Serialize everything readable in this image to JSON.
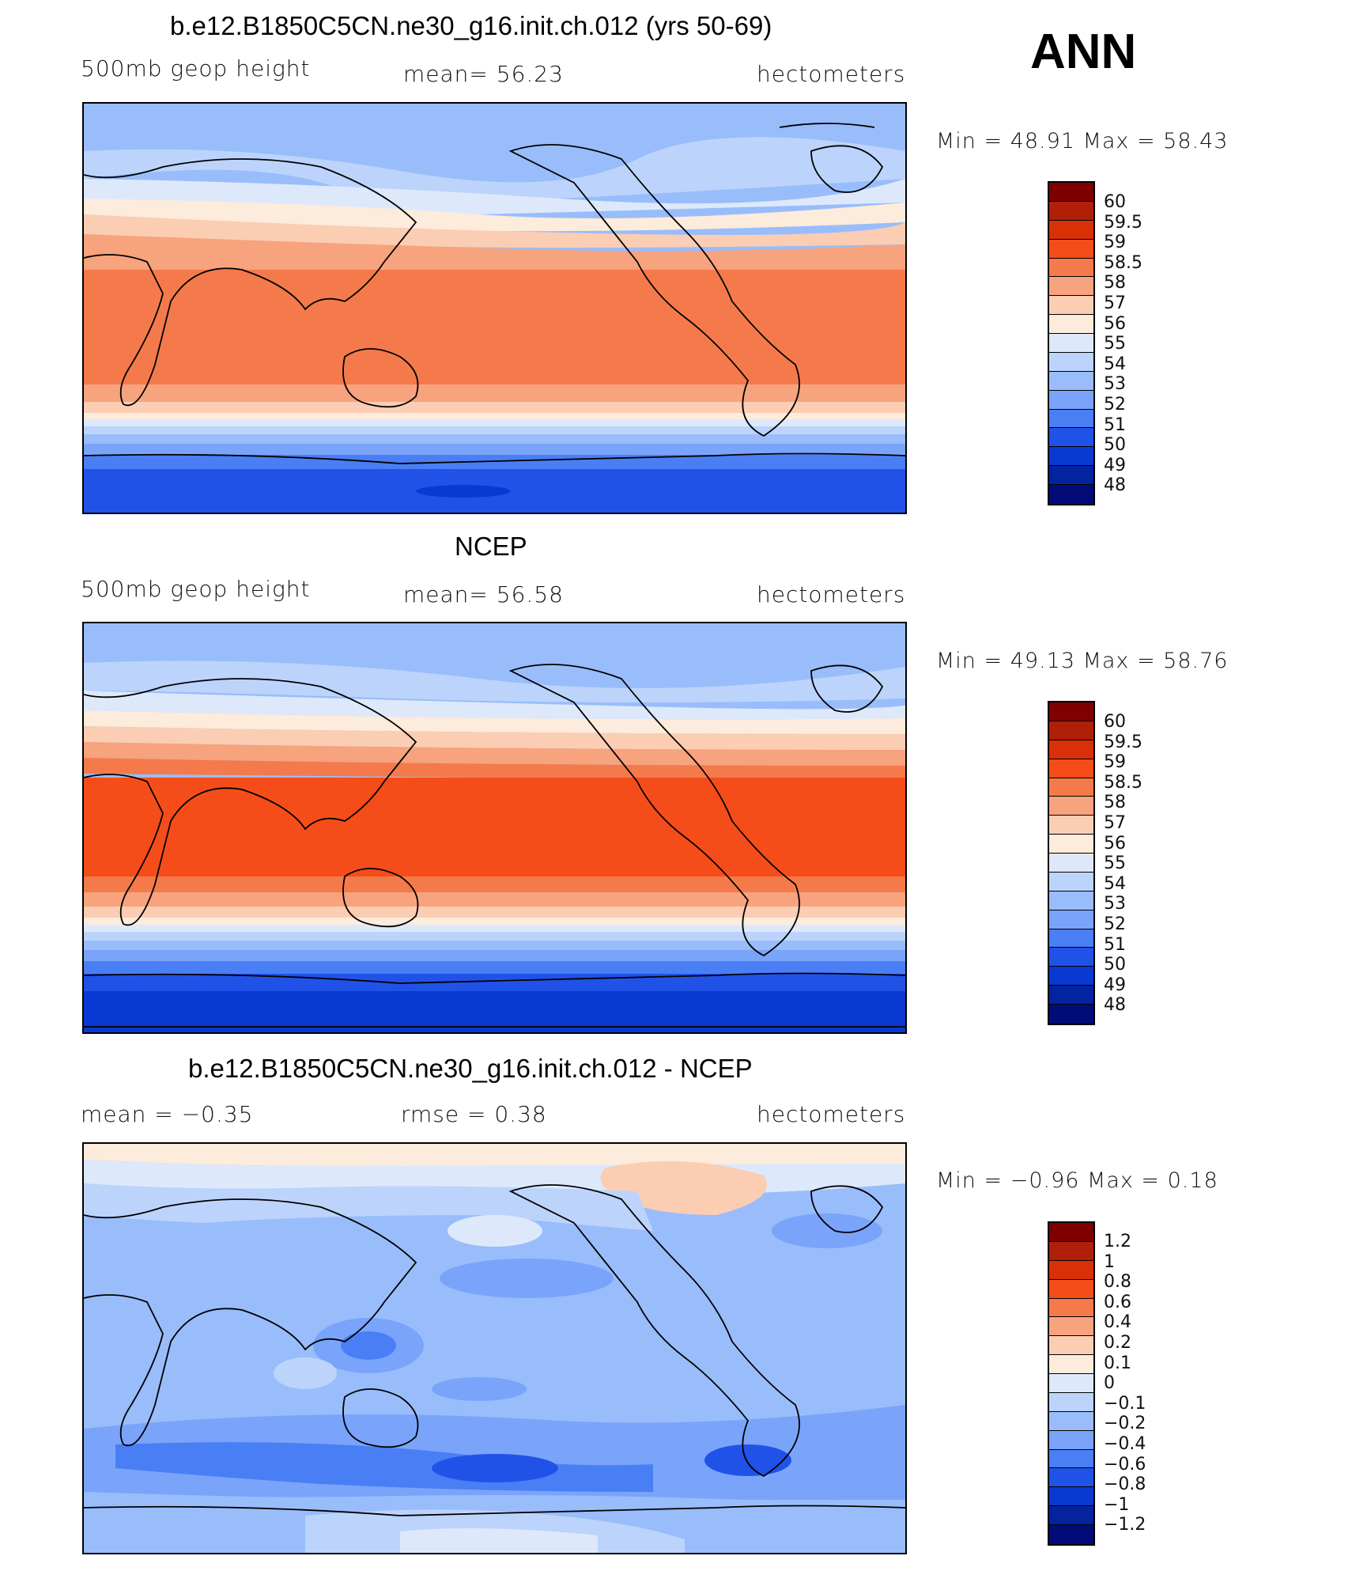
{
  "season": "ANN",
  "panels": [
    {
      "title": "b.e12.B1850C5CN.ne30_g16.init.ch.012 (yrs 50-69)",
      "left_label": "500mb  geop  height",
      "mid_label": "mean=   56.23",
      "units": "hectometers",
      "min_max": "Min  =    48.91  Max  =    58.43",
      "levels": [
        "60",
        "59.5",
        "59",
        "58.5",
        "58",
        "57",
        "56",
        "55",
        "54",
        "53",
        "52",
        "51",
        "50",
        "49",
        "48"
      ],
      "colors": [
        "#7f0000",
        "#b01f08",
        "#d93008",
        "#f54d1a",
        "#f47a4b",
        "#f6a37e",
        "#fbcdb3",
        "#fdebdc",
        "#dde9fb",
        "#bcd4fb",
        "#99bdfb",
        "#7aa4fa",
        "#4a7ef5",
        "#2152e8",
        "#0839d2",
        "#04249f",
        "#010c79"
      ]
    },
    {
      "title": "NCEP",
      "left_label": "500mb  geop  height",
      "mid_label": "mean=   56.58",
      "units": "hectometers",
      "min_max": "Min  =    49.13  Max  =    58.76",
      "levels": [
        "60",
        "59.5",
        "59",
        "58.5",
        "58",
        "57",
        "56",
        "55",
        "54",
        "53",
        "52",
        "51",
        "50",
        "49",
        "48"
      ],
      "colors": [
        "#7f0000",
        "#b01f08",
        "#d93008",
        "#f54d1a",
        "#f47a4b",
        "#f6a37e",
        "#fbcdb3",
        "#fdebdc",
        "#dde9fb",
        "#bcd4fb",
        "#99bdfb",
        "#7aa4fa",
        "#4a7ef5",
        "#2152e8",
        "#0839d2",
        "#04249f",
        "#010c79"
      ]
    },
    {
      "title": "b.e12.B1850C5CN.ne30_g16.init.ch.012 - NCEP",
      "left_label": "mean  =    −0.35",
      "mid_label": "rmse  =     0.38",
      "units": "hectometers",
      "min_max": "Min  =   −0.96  Max  =     0.18",
      "levels": [
        "1.2",
        "1",
        "0.8",
        "0.6",
        "0.4",
        "0.2",
        "0.1",
        "0",
        "−0.1",
        "−0.2",
        "−0.4",
        "−0.6",
        "−0.8",
        "−1",
        "−1.2"
      ],
      "colors": [
        "#7f0000",
        "#b01f08",
        "#d93008",
        "#f54d1a",
        "#f47a4b",
        "#f6a37e",
        "#fbcdb3",
        "#fdebdc",
        "#dde9fb",
        "#bcd4fb",
        "#99bdfb",
        "#7aa4fa",
        "#4a7ef5",
        "#2152e8",
        "#0839d2",
        "#04249f",
        "#010c79"
      ]
    }
  ],
  "chart_data": {
    "type": "heatmap",
    "variable": "500mb geop height",
    "units": "hectometers",
    "maps": [
      {
        "name": "b.e12.B1850C5CN.ne30_g16.init.ch.012 (yrs 50-69)",
        "mean": 56.23,
        "min": 48.91,
        "max": 58.43
      },
      {
        "name": "NCEP",
        "mean": 56.58,
        "min": 49.13,
        "max": 58.76
      },
      {
        "name": "b.e12.B1850C5CN.ne30_g16.init.ch.012 - NCEP",
        "mean": -0.35,
        "rmse": 0.38,
        "min": -0.96,
        "max": 0.18
      }
    ]
  }
}
